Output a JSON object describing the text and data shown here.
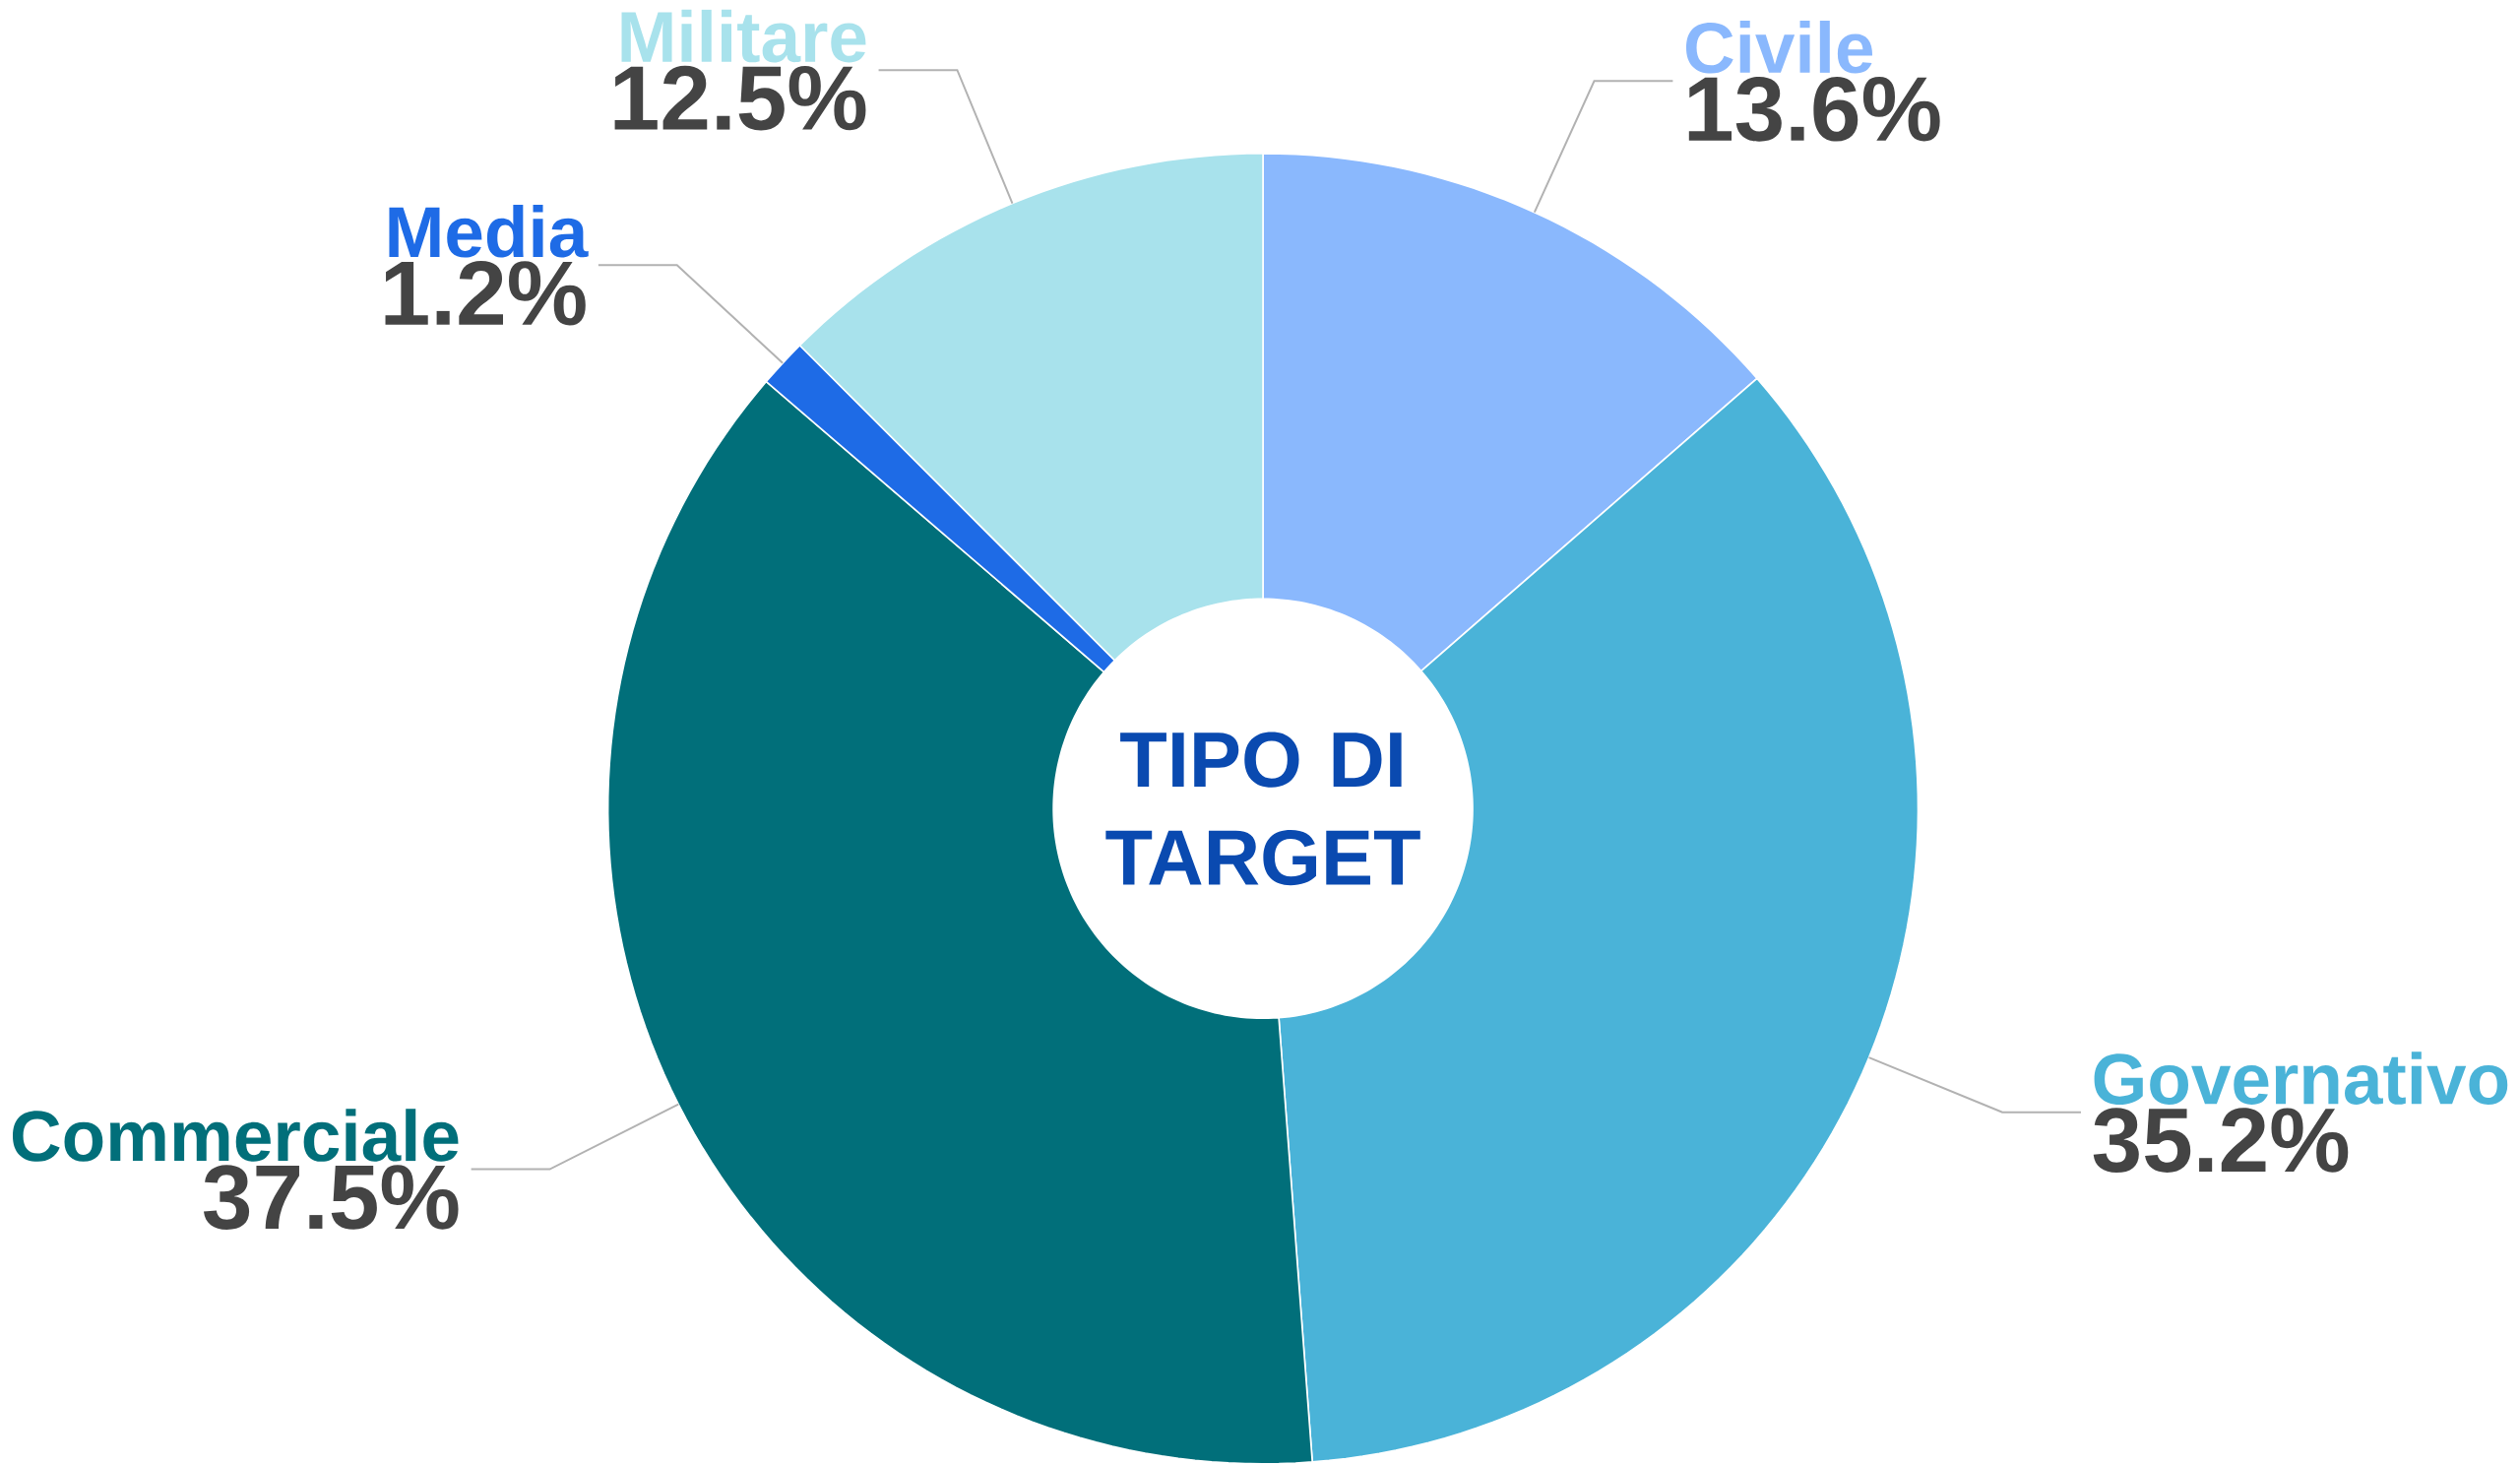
{
  "chart_data": {
    "type": "donut",
    "title": "TIPO DI TARGET",
    "categories": [
      "Civile",
      "Governativo",
      "Commerciale",
      "Media",
      "Militare"
    ],
    "values": [
      13.6,
      35.2,
      37.5,
      1.2,
      12.5
    ],
    "colors": [
      "#8ab8fd",
      "#4ab3d8",
      "#016f7a",
      "#1e6be6",
      "#a8e2ec"
    ],
    "value_labels": [
      "13.6%",
      "35.2%",
      "37.5%",
      "1.2%",
      "12.5%"
    ]
  }
}
